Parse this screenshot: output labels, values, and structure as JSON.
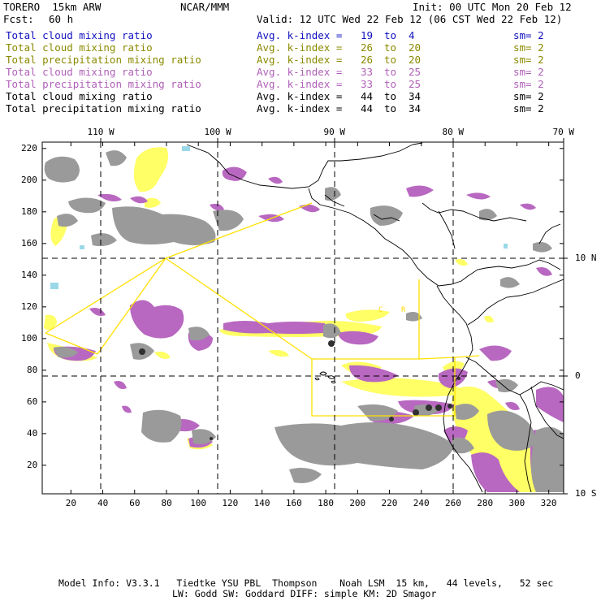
{
  "header": {
    "model": "TORERO  15km ARW",
    "org": "NCAR/MMM",
    "init": "Init: 00 UTC Mon 20 Feb 12",
    "fcst_label": "Fcst:",
    "fcst_value": "60 h",
    "valid": "Valid: 12 UTC Wed 22 Feb 12 (06 CST Wed 22 Feb 12)"
  },
  "legend": [
    {
      "field": "Total cloud mixing ratio",
      "index_label": "Avg. k-index =",
      "from": "19",
      "to_word": "to",
      "to": "4",
      "sm": "sm= 2",
      "color": "#1010c0"
    },
    {
      "field": "Total cloud mixing ratio",
      "index_label": "Avg. k-index =",
      "from": "26",
      "to_word": "to",
      "to": "20",
      "sm": "sm= 2",
      "color": "#8a8a00"
    },
    {
      "field": "Total precipitation mixing ratio",
      "index_label": "Avg. k-index =",
      "from": "26",
      "to_word": "to",
      "to": "20",
      "sm": "sm= 2",
      "color": "#8a8a00"
    },
    {
      "field": "Total cloud mixing ratio",
      "index_label": "Avg. k-index =",
      "from": "33",
      "to_word": "to",
      "to": "25",
      "sm": "sm= 2",
      "color": "#b060b8"
    },
    {
      "field": "Total precipitation mixing ratio",
      "index_label": "Avg. k-index =",
      "from": "33",
      "to_word": "to",
      "to": "25",
      "sm": "sm= 2",
      "color": "#b060b8"
    },
    {
      "field": "Total cloud mixing ratio",
      "index_label": "Avg. k-index =",
      "from": "44",
      "to_word": "to",
      "to": "34",
      "sm": "sm= 2",
      "color": "#000000"
    },
    {
      "field": "Total precipitation mixing ratio",
      "index_label": "Avg. k-index =",
      "from": "44",
      "to_word": "to",
      "to": "34",
      "sm": "sm= 2",
      "color": "#000000"
    }
  ],
  "map": {
    "top_longitudes": [
      "110 W",
      "100 W",
      "90 W",
      "80 W",
      "70 W"
    ],
    "right_latitudes": [
      "10 N",
      "0",
      "10 S"
    ],
    "x_grid_values": [
      "20",
      "40",
      "60",
      "80",
      "100",
      "120",
      "140",
      "160",
      "180",
      "200",
      "220",
      "240",
      "260",
      "280",
      "300",
      "320"
    ],
    "y_grid_values": [
      "220",
      "200",
      "180",
      "160",
      "140",
      "120",
      "100",
      "80",
      "60",
      "40",
      "20"
    ],
    "domain_labels": [
      "C",
      "R"
    ],
    "colors": {
      "cloud_light": "#9ad8e8",
      "precip_light": "#ffff66",
      "precip_mid": "#ffd800",
      "moderate": "#b868c0",
      "heavy": "#9a9a9a",
      "extreme": "#303030",
      "domain_outline": "#ffe000",
      "grid": "#000000"
    }
  },
  "footer": {
    "line1": "Model Info: V3.3.1   Tiedtke YSU PBL  Thompson    Noah LSM  15 km,   44 levels,   52 sec",
    "line2": "LW: Godd SW: Goddard DIFF: simple KM: 2D Smagor"
  }
}
